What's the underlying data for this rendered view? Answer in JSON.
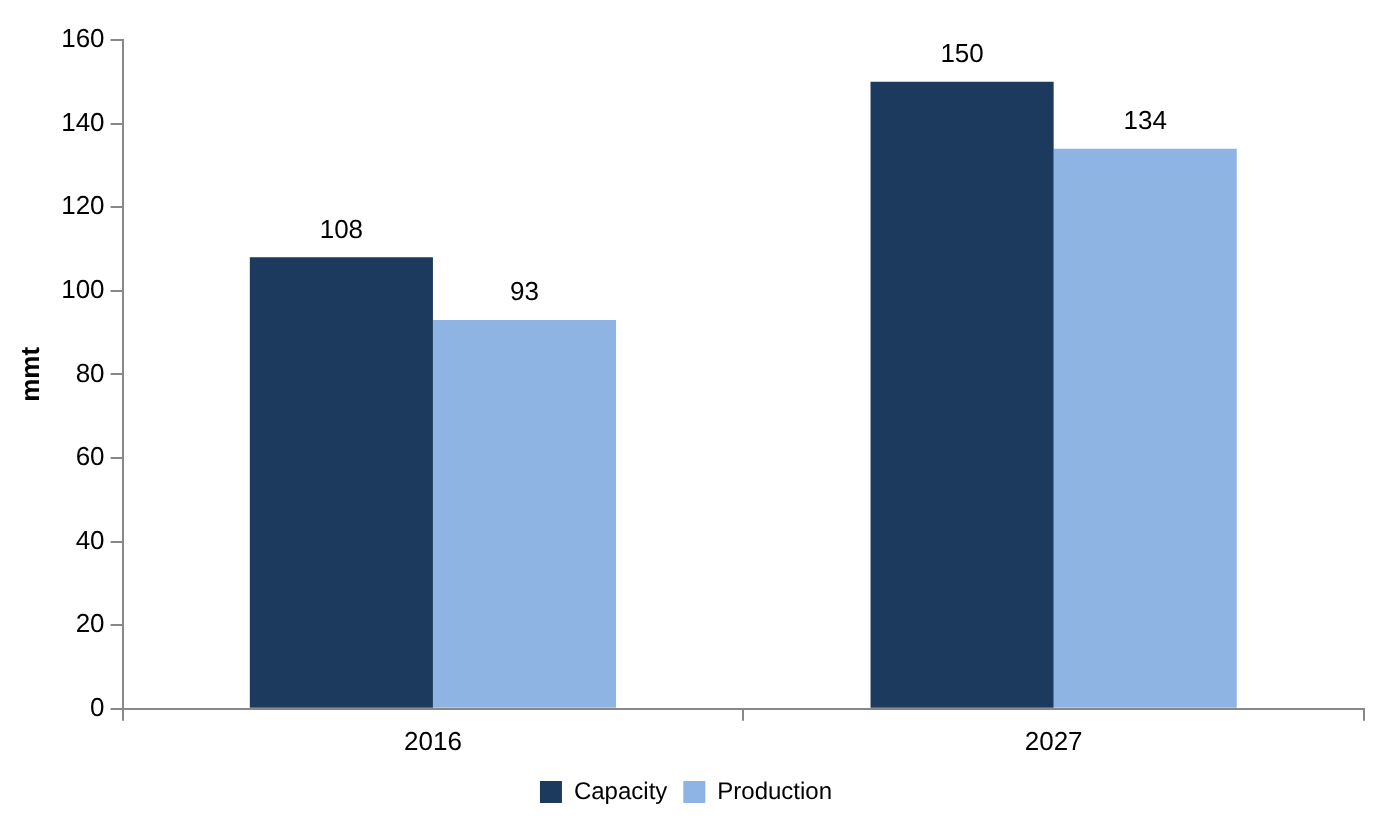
{
  "chart_data": {
    "type": "bar",
    "ylabel": "mmt",
    "categories": [
      "2016",
      "2027"
    ],
    "series": [
      {
        "name": "Capacity",
        "color": "#1b3a5e",
        "values": [
          108,
          150
        ]
      },
      {
        "name": "Production",
        "color": "#8eb4e3",
        "values": [
          93,
          134
        ]
      }
    ],
    "ylim": [
      0,
      160
    ],
    "yticks": [
      0,
      20,
      40,
      60,
      80,
      100,
      120,
      140,
      160
    ],
    "grid": false,
    "legend": "bottom",
    "data_labels": true
  }
}
